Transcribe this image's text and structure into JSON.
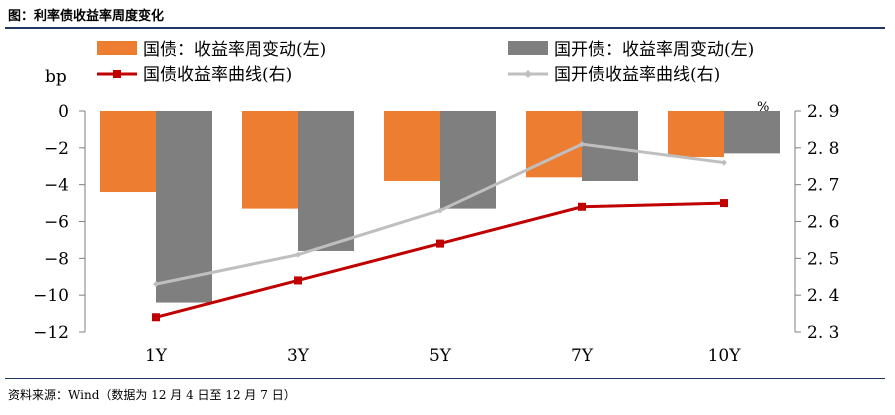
{
  "title": "图：利率债收益率周度变化",
  "source": "资料来源：Wind（数据为 12 月 4 日至 12 月 7 日）",
  "chart_data": {
    "type": "bar+line",
    "categories": [
      "1Y",
      "3Y",
      "5Y",
      "7Y",
      "10Y"
    ],
    "left_axis": {
      "unit": "bp",
      "range": [
        -12,
        0
      ],
      "ticks": [
        "0",
        "−2",
        "−4",
        "−6",
        "−8",
        "−10",
        "−12"
      ]
    },
    "right_axis": {
      "unit": "%",
      "range": [
        2.3,
        2.9
      ],
      "ticks": [
        "2. 9",
        "2. 8",
        "2. 7",
        "2. 6",
        "2. 5",
        "2. 4",
        "2. 3"
      ]
    },
    "bar_series": [
      {
        "name": "国债：收益率周变动(左)",
        "color": "#ed7d31",
        "values": [
          -4.4,
          -5.3,
          -3.8,
          -3.6,
          -2.5
        ]
      },
      {
        "name": "国开债：收益率周变动(左)",
        "color": "#7f7f7f",
        "values": [
          -10.4,
          -7.6,
          -5.3,
          -3.8,
          -2.3
        ]
      }
    ],
    "line_series": [
      {
        "name": "国债收益率曲线(右)",
        "color": "#c00000",
        "marker": "square",
        "values": [
          2.34,
          2.44,
          2.54,
          2.64,
          2.65
        ]
      },
      {
        "name": "国开债收益率曲线(右)",
        "color": "#bfbfbf",
        "marker": "diamond",
        "values": [
          2.43,
          2.51,
          2.63,
          2.81,
          2.76
        ]
      }
    ],
    "grid": false,
    "legend_position": "top"
  }
}
